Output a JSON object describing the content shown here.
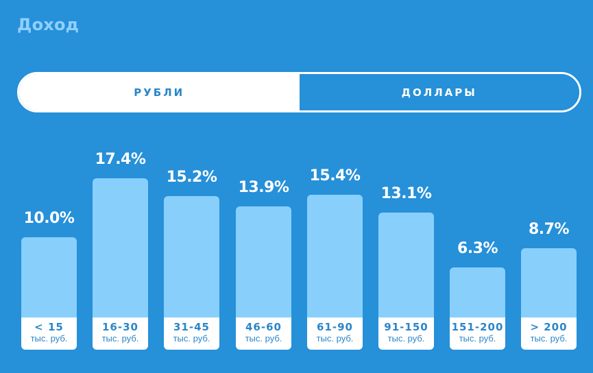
{
  "header": {
    "title": "Доход"
  },
  "toggle": {
    "options": [
      {
        "label": "РУБЛИ",
        "active": true
      },
      {
        "label": "ДОЛЛАРЫ",
        "active": false
      }
    ]
  },
  "chart_data": {
    "type": "bar",
    "categories": [
      "< 15",
      "16-30",
      "31-45",
      "46-60",
      "61-90",
      "91-150",
      "151-200",
      "> 200"
    ],
    "unit_label": "тыс. руб.",
    "values": [
      10.0,
      17.4,
      15.2,
      13.9,
      15.4,
      13.1,
      6.3,
      8.7
    ],
    "value_labels": [
      "10.0%",
      "17.4%",
      "15.2%",
      "13.9%",
      "15.4%",
      "13.1%",
      "6.3%",
      "8.7%"
    ],
    "title": "",
    "xlabel": "",
    "ylabel": "",
    "grid": false
  },
  "colors": {
    "background": "#2690d9",
    "bar": "#88cffb",
    "title": "#8fd0ff",
    "text_dark": "#2a86c9",
    "white": "#ffffff"
  }
}
